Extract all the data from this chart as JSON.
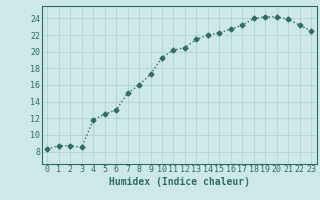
{
  "x": [
    0,
    1,
    2,
    3,
    4,
    5,
    6,
    7,
    8,
    9,
    10,
    11,
    12,
    13,
    14,
    15,
    16,
    17,
    18,
    19,
    20,
    21,
    22,
    23
  ],
  "y": [
    8.3,
    8.7,
    8.7,
    8.5,
    11.8,
    12.5,
    13.0,
    15.0,
    16.0,
    17.3,
    19.3,
    20.2,
    20.5,
    21.5,
    22.0,
    22.3,
    22.7,
    23.2,
    24.0,
    24.2,
    24.2,
    23.9,
    23.2,
    22.5
  ],
  "line_color": "#2d6e63",
  "marker": "D",
  "marker_size": 2.5,
  "linewidth": 1.0,
  "linestyle": "dotted",
  "xlabel": "Humidex (Indice chaleur)",
  "xlim": [
    -0.5,
    23.5
  ],
  "ylim": [
    6.5,
    25.5
  ],
  "yticks": [
    8,
    10,
    12,
    14,
    16,
    18,
    20,
    22,
    24
  ],
  "xticks": [
    0,
    1,
    2,
    3,
    4,
    5,
    6,
    7,
    8,
    9,
    10,
    11,
    12,
    13,
    14,
    15,
    16,
    17,
    18,
    19,
    20,
    21,
    22,
    23
  ],
  "background_color": "#cce8e8",
  "grid_color": "#aacfcf",
  "tick_color": "#2d6e63",
  "label_color": "#2d6e63",
  "xlabel_fontsize": 7,
  "tick_fontsize": 6
}
